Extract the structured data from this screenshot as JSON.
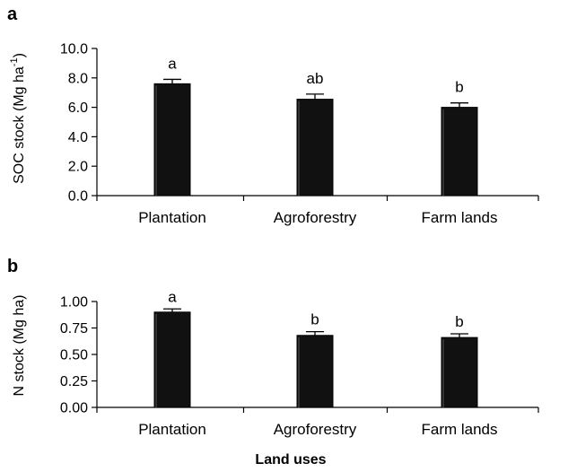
{
  "chart_data": [
    {
      "type": "bar",
      "panel": "a",
      "categories": [
        "Plantation",
        "Agroforestry",
        "Farm lands"
      ],
      "values": [
        7.6,
        6.55,
        6.0
      ],
      "errors": [
        0.3,
        0.35,
        0.3
      ],
      "significance": [
        "a",
        "ab",
        "b"
      ],
      "ylabel": "SOC stock (Mg ha",
      "ylabel_superscript": "-1",
      "ylabel_close": ")",
      "ylim": [
        0,
        10
      ],
      "yticks": [
        "0.0",
        "2.0",
        "4.0",
        "6.0",
        "8.0",
        "10.0"
      ],
      "ytick_values": [
        0,
        2,
        4,
        6,
        8,
        10
      ],
      "grid": false,
      "bar_color": "#111111"
    },
    {
      "type": "bar",
      "panel": "b",
      "categories": [
        "Plantation",
        "Agroforestry",
        "Farm lands"
      ],
      "values": [
        0.9,
        0.68,
        0.66
      ],
      "errors": [
        0.03,
        0.035,
        0.035
      ],
      "significance": [
        "a",
        "b",
        "b"
      ],
      "ylabel": "N stock (Mg ha)",
      "ylim": [
        0,
        1
      ],
      "yticks": [
        "0.00",
        "0.25",
        "0.50",
        "0.75",
        "1.00"
      ],
      "ytick_values": [
        0,
        0.25,
        0.5,
        0.75,
        1.0
      ],
      "grid": false,
      "bar_color": "#111111"
    }
  ],
  "xlabel": "Land uses"
}
